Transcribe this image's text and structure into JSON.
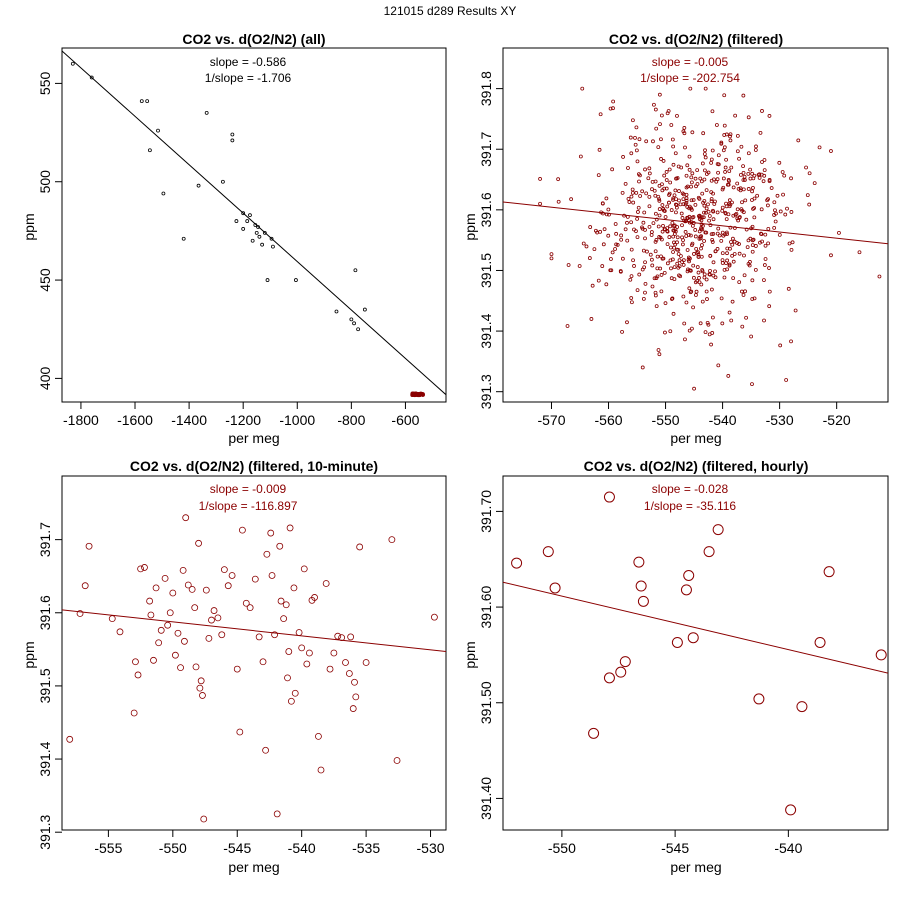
{
  "page_title": "121015   d289   Results XY",
  "chart_data": [
    {
      "type": "scatter",
      "title": "CO2 vs. d(O2/N2) (all)",
      "xlabel": "per meg",
      "ylabel": "ppm",
      "xlim": [
        -1870,
        -450
      ],
      "ylim": [
        388,
        568
      ],
      "xticks": [
        -1800,
        -1600,
        -1400,
        -1200,
        -1000,
        -800,
        -600
      ],
      "yticks": [
        400,
        450,
        500,
        550
      ],
      "ytick_labels": [
        "400",
        "450",
        "500",
        "550"
      ],
      "grid": false,
      "point_color": "#000000",
      "fit_color": "#000000",
      "fit_line": {
        "x": [
          -1870,
          -450
        ],
        "y": [
          566.5,
          391.7
        ]
      },
      "annotations": [
        "slope = -0.586",
        "1/slope = -1.706"
      ],
      "annotation_color": "#000000",
      "cluster": {
        "x_range": [
          -575,
          -535
        ],
        "y_range": [
          391.5,
          392.3
        ],
        "n": 60,
        "color": "#8b0000"
      },
      "points": [
        {
          "x": -1830,
          "y": 560
        },
        {
          "x": -1760,
          "y": 553
        },
        {
          "x": -1575,
          "y": 541
        },
        {
          "x": -1555,
          "y": 541
        },
        {
          "x": -1515,
          "y": 526
        },
        {
          "x": -1545,
          "y": 516
        },
        {
          "x": -1495,
          "y": 494
        },
        {
          "x": -1420,
          "y": 471
        },
        {
          "x": -1365,
          "y": 498
        },
        {
          "x": -1335,
          "y": 535
        },
        {
          "x": -1275,
          "y": 500
        },
        {
          "x": -1240,
          "y": 524
        },
        {
          "x": -1240,
          "y": 521
        },
        {
          "x": -1225,
          "y": 480
        },
        {
          "x": -1200,
          "y": 484
        },
        {
          "x": -1200,
          "y": 476
        },
        {
          "x": -1185,
          "y": 480
        },
        {
          "x": -1175,
          "y": 483
        },
        {
          "x": -1165,
          "y": 470
        },
        {
          "x": -1155,
          "y": 478
        },
        {
          "x": -1150,
          "y": 474
        },
        {
          "x": -1145,
          "y": 477
        },
        {
          "x": -1140,
          "y": 472
        },
        {
          "x": -1130,
          "y": 468
        },
        {
          "x": -1120,
          "y": 474
        },
        {
          "x": -1110,
          "y": 450
        },
        {
          "x": -1095,
          "y": 471
        },
        {
          "x": -1090,
          "y": 467
        },
        {
          "x": -1005,
          "y": 450
        },
        {
          "x": -855,
          "y": 434
        },
        {
          "x": -800,
          "y": 430
        },
        {
          "x": -790,
          "y": 428
        },
        {
          "x": -785,
          "y": 455
        },
        {
          "x": -775,
          "y": 425
        },
        {
          "x": -750,
          "y": 435
        }
      ]
    },
    {
      "type": "scatter",
      "title": "CO2 vs. d(O2/N2) (filtered)",
      "xlabel": "per meg",
      "ylabel": "ppm",
      "xlim": [
        -578.5,
        -511
      ],
      "ylim": [
        391.283,
        391.867
      ],
      "xticks": [
        -570,
        -560,
        -550,
        -540,
        -530,
        -520
      ],
      "yticks": [
        391.3,
        391.4,
        391.5,
        391.6,
        391.7,
        391.8
      ],
      "ytick_labels": [
        "391.3",
        "391.4",
        "391.5",
        "391.6",
        "391.7",
        "391.8"
      ],
      "grid": false,
      "point_color": "#8b0000",
      "fit_color": "#8b0000",
      "fit_line": {
        "x": [
          -578.5,
          -511
        ],
        "y": [
          391.613,
          391.544
        ]
      },
      "annotations": [
        "slope = -0.005",
        "1/slope = -202.754"
      ],
      "annotation_color": "#8b0000",
      "cloud": {
        "n": 700,
        "x_mean": -545,
        "x_sd": 8.2,
        "y_mean": 391.578,
        "y_sd": 0.082,
        "x_min": -576,
        "x_max": -513,
        "y_min": 391.3,
        "y_max": 391.8,
        "seed": 1015
      },
      "points": [
        {
          "x": -572,
          "y": 391.61
        },
        {
          "x": -572,
          "y": 391.651
        },
        {
          "x": -570,
          "y": 391.52
        },
        {
          "x": -570,
          "y": 391.527
        },
        {
          "x": -567,
          "y": 391.509
        },
        {
          "x": -563,
          "y": 391.42
        },
        {
          "x": -551,
          "y": 391.79
        },
        {
          "x": -548,
          "y": 391.755
        },
        {
          "x": -541,
          "y": 391.74
        },
        {
          "x": -554,
          "y": 391.34
        },
        {
          "x": -545,
          "y": 391.305
        },
        {
          "x": -539,
          "y": 391.326
        },
        {
          "x": -523,
          "y": 391.703
        },
        {
          "x": -521,
          "y": 391.697
        },
        {
          "x": -521,
          "y": 391.525
        },
        {
          "x": -516,
          "y": 391.53
        },
        {
          "x": -512.5,
          "y": 391.49
        },
        {
          "x": -528,
          "y": 391.652
        },
        {
          "x": -528,
          "y": 391.383
        },
        {
          "x": -535,
          "y": 391.391
        }
      ]
    },
    {
      "type": "scatter",
      "title": "CO2 vs. d(O2/N2) (filtered, 10-minute)",
      "xlabel": "per meg",
      "ylabel": "ppm",
      "xlim": [
        -558.6,
        -528.8
      ],
      "ylim": [
        391.303,
        391.787
      ],
      "xticks": [
        -555,
        -550,
        -545,
        -540,
        -535,
        -530
      ],
      "yticks": [
        391.3,
        391.4,
        391.5,
        391.6,
        391.7
      ],
      "ytick_labels": [
        "391.3",
        "391.4",
        "391.5",
        "391.6",
        "391.7"
      ],
      "grid": false,
      "point_color": "#8b0000",
      "fit_color": "#8b0000",
      "fit_line": {
        "x": [
          -558.6,
          -528.8
        ],
        "y": [
          391.604,
          391.547
        ]
      },
      "annotations": [
        "slope = -0.009",
        "1/slope = -116.897"
      ],
      "annotation_color": "#8b0000",
      "points": [
        {
          "x": -558,
          "y": 391.427
        },
        {
          "x": -557.2,
          "y": 391.599
        },
        {
          "x": -556.8,
          "y": 391.637
        },
        {
          "x": -556.5,
          "y": 391.691
        },
        {
          "x": -554.7,
          "y": 391.592
        },
        {
          "x": -554.1,
          "y": 391.574
        },
        {
          "x": -553,
          "y": 391.463
        },
        {
          "x": -552.9,
          "y": 391.533
        },
        {
          "x": -552.7,
          "y": 391.515
        },
        {
          "x": -552.5,
          "y": 391.66
        },
        {
          "x": -552.2,
          "y": 391.662
        },
        {
          "x": -551.8,
          "y": 391.616
        },
        {
          "x": -551.7,
          "y": 391.597
        },
        {
          "x": -551.5,
          "y": 391.535
        },
        {
          "x": -551.3,
          "y": 391.634
        },
        {
          "x": -551.1,
          "y": 391.559
        },
        {
          "x": -550.9,
          "y": 391.576
        },
        {
          "x": -550.6,
          "y": 391.647
        },
        {
          "x": -550.4,
          "y": 391.583
        },
        {
          "x": -550.2,
          "y": 391.6
        },
        {
          "x": -550,
          "y": 391.627
        },
        {
          "x": -549.8,
          "y": 391.542
        },
        {
          "x": -549.6,
          "y": 391.572
        },
        {
          "x": -549.4,
          "y": 391.525
        },
        {
          "x": -549.2,
          "y": 391.658
        },
        {
          "x": -549.1,
          "y": 391.561
        },
        {
          "x": -549,
          "y": 391.73
        },
        {
          "x": -548.8,
          "y": 391.638
        },
        {
          "x": -548.5,
          "y": 391.632
        },
        {
          "x": -548.3,
          "y": 391.607
        },
        {
          "x": -548.2,
          "y": 391.526
        },
        {
          "x": -548,
          "y": 391.695
        },
        {
          "x": -547.9,
          "y": 391.497
        },
        {
          "x": -547.8,
          "y": 391.507
        },
        {
          "x": -547.7,
          "y": 391.487
        },
        {
          "x": -547.6,
          "y": 391.318
        },
        {
          "x": -547.4,
          "y": 391.631
        },
        {
          "x": -547.2,
          "y": 391.565
        },
        {
          "x": -547,
          "y": 391.59
        },
        {
          "x": -546.8,
          "y": 391.603
        },
        {
          "x": -546.5,
          "y": 391.593
        },
        {
          "x": -546.2,
          "y": 391.57
        },
        {
          "x": -546,
          "y": 391.659
        },
        {
          "x": -545.7,
          "y": 391.637
        },
        {
          "x": -545.4,
          "y": 391.651
        },
        {
          "x": -545,
          "y": 391.523
        },
        {
          "x": -544.8,
          "y": 391.437
        },
        {
          "x": -544.6,
          "y": 391.713
        },
        {
          "x": -544.3,
          "y": 391.613
        },
        {
          "x": -544,
          "y": 391.607
        },
        {
          "x": -543.6,
          "y": 391.646
        },
        {
          "x": -543.3,
          "y": 391.567
        },
        {
          "x": -543,
          "y": 391.533
        },
        {
          "x": -542.8,
          "y": 391.412
        },
        {
          "x": -542.7,
          "y": 391.68
        },
        {
          "x": -542.4,
          "y": 391.709
        },
        {
          "x": -542.3,
          "y": 391.651
        },
        {
          "x": -542.1,
          "y": 391.57
        },
        {
          "x": -541.9,
          "y": 391.325
        },
        {
          "x": -541.7,
          "y": 391.691
        },
        {
          "x": -541.6,
          "y": 391.616
        },
        {
          "x": -541.4,
          "y": 391.592
        },
        {
          "x": -541.2,
          "y": 391.611
        },
        {
          "x": -541.1,
          "y": 391.511
        },
        {
          "x": -541,
          "y": 391.547
        },
        {
          "x": -540.9,
          "y": 391.716
        },
        {
          "x": -540.8,
          "y": 391.479
        },
        {
          "x": -540.6,
          "y": 391.634
        },
        {
          "x": -540.5,
          "y": 391.49
        },
        {
          "x": -540.2,
          "y": 391.573
        },
        {
          "x": -540,
          "y": 391.552
        },
        {
          "x": -539.8,
          "y": 391.66
        },
        {
          "x": -539.6,
          "y": 391.53
        },
        {
          "x": -539.4,
          "y": 391.545
        },
        {
          "x": -539.2,
          "y": 391.617
        },
        {
          "x": -539,
          "y": 391.621
        },
        {
          "x": -538.7,
          "y": 391.431
        },
        {
          "x": -538.5,
          "y": 391.385
        },
        {
          "x": -538.1,
          "y": 391.64
        },
        {
          "x": -537.8,
          "y": 391.523
        },
        {
          "x": -537.5,
          "y": 391.545
        },
        {
          "x": -537.2,
          "y": 391.568
        },
        {
          "x": -536.9,
          "y": 391.566
        },
        {
          "x": -536.6,
          "y": 391.532
        },
        {
          "x": -536.3,
          "y": 391.517
        },
        {
          "x": -536.2,
          "y": 391.567
        },
        {
          "x": -536,
          "y": 391.469
        },
        {
          "x": -535.9,
          "y": 391.505
        },
        {
          "x": -535.8,
          "y": 391.485
        },
        {
          "x": -535.5,
          "y": 391.69
        },
        {
          "x": -535,
          "y": 391.532
        },
        {
          "x": -533,
          "y": 391.7
        },
        {
          "x": -532.6,
          "y": 391.398
        },
        {
          "x": -529.7,
          "y": 391.594
        }
      ]
    },
    {
      "type": "scatter",
      "title": "CO2 vs. d(O2/N2) (filtered, hourly)",
      "xlabel": "per meg",
      "ylabel": "ppm",
      "xlim": [
        -552.6,
        -535.6
      ],
      "ylim": [
        391.367,
        391.737
      ],
      "xticks": [
        -550,
        -545,
        -540
      ],
      "yticks": [
        391.4,
        391.5,
        391.6,
        391.7
      ],
      "ytick_labels": [
        "391.40",
        "391.50",
        "391.60",
        "391.70"
      ],
      "grid": false,
      "point_color": "#8b0000",
      "fit_color": "#8b0000",
      "fit_line": {
        "x": [
          -552.6,
          -535.6
        ],
        "y": [
          391.626,
          391.531
        ]
      },
      "annotations": [
        "slope = -0.028",
        "1/slope = -35.116"
      ],
      "annotation_color": "#8b0000",
      "points": [
        {
          "x": -552,
          "y": 391.646
        },
        {
          "x": -550.6,
          "y": 391.658
        },
        {
          "x": -550.3,
          "y": 391.62
        },
        {
          "x": -548.6,
          "y": 391.468
        },
        {
          "x": -547.9,
          "y": 391.715
        },
        {
          "x": -547.9,
          "y": 391.526
        },
        {
          "x": -547.4,
          "y": 391.532
        },
        {
          "x": -547.2,
          "y": 391.543
        },
        {
          "x": -546.6,
          "y": 391.647
        },
        {
          "x": -546.5,
          "y": 391.622
        },
        {
          "x": -546.4,
          "y": 391.606
        },
        {
          "x": -544.9,
          "y": 391.563
        },
        {
          "x": -544.5,
          "y": 391.618
        },
        {
          "x": -544.4,
          "y": 391.633
        },
        {
          "x": -544.2,
          "y": 391.568
        },
        {
          "x": -543.5,
          "y": 391.658
        },
        {
          "x": -543.1,
          "y": 391.681
        },
        {
          "x": -541.3,
          "y": 391.504
        },
        {
          "x": -539.9,
          "y": 391.388
        },
        {
          "x": -539.4,
          "y": 391.496
        },
        {
          "x": -538.6,
          "y": 391.563
        },
        {
          "x": -538.2,
          "y": 391.637
        },
        {
          "x": -535.9,
          "y": 391.55
        }
      ]
    }
  ]
}
